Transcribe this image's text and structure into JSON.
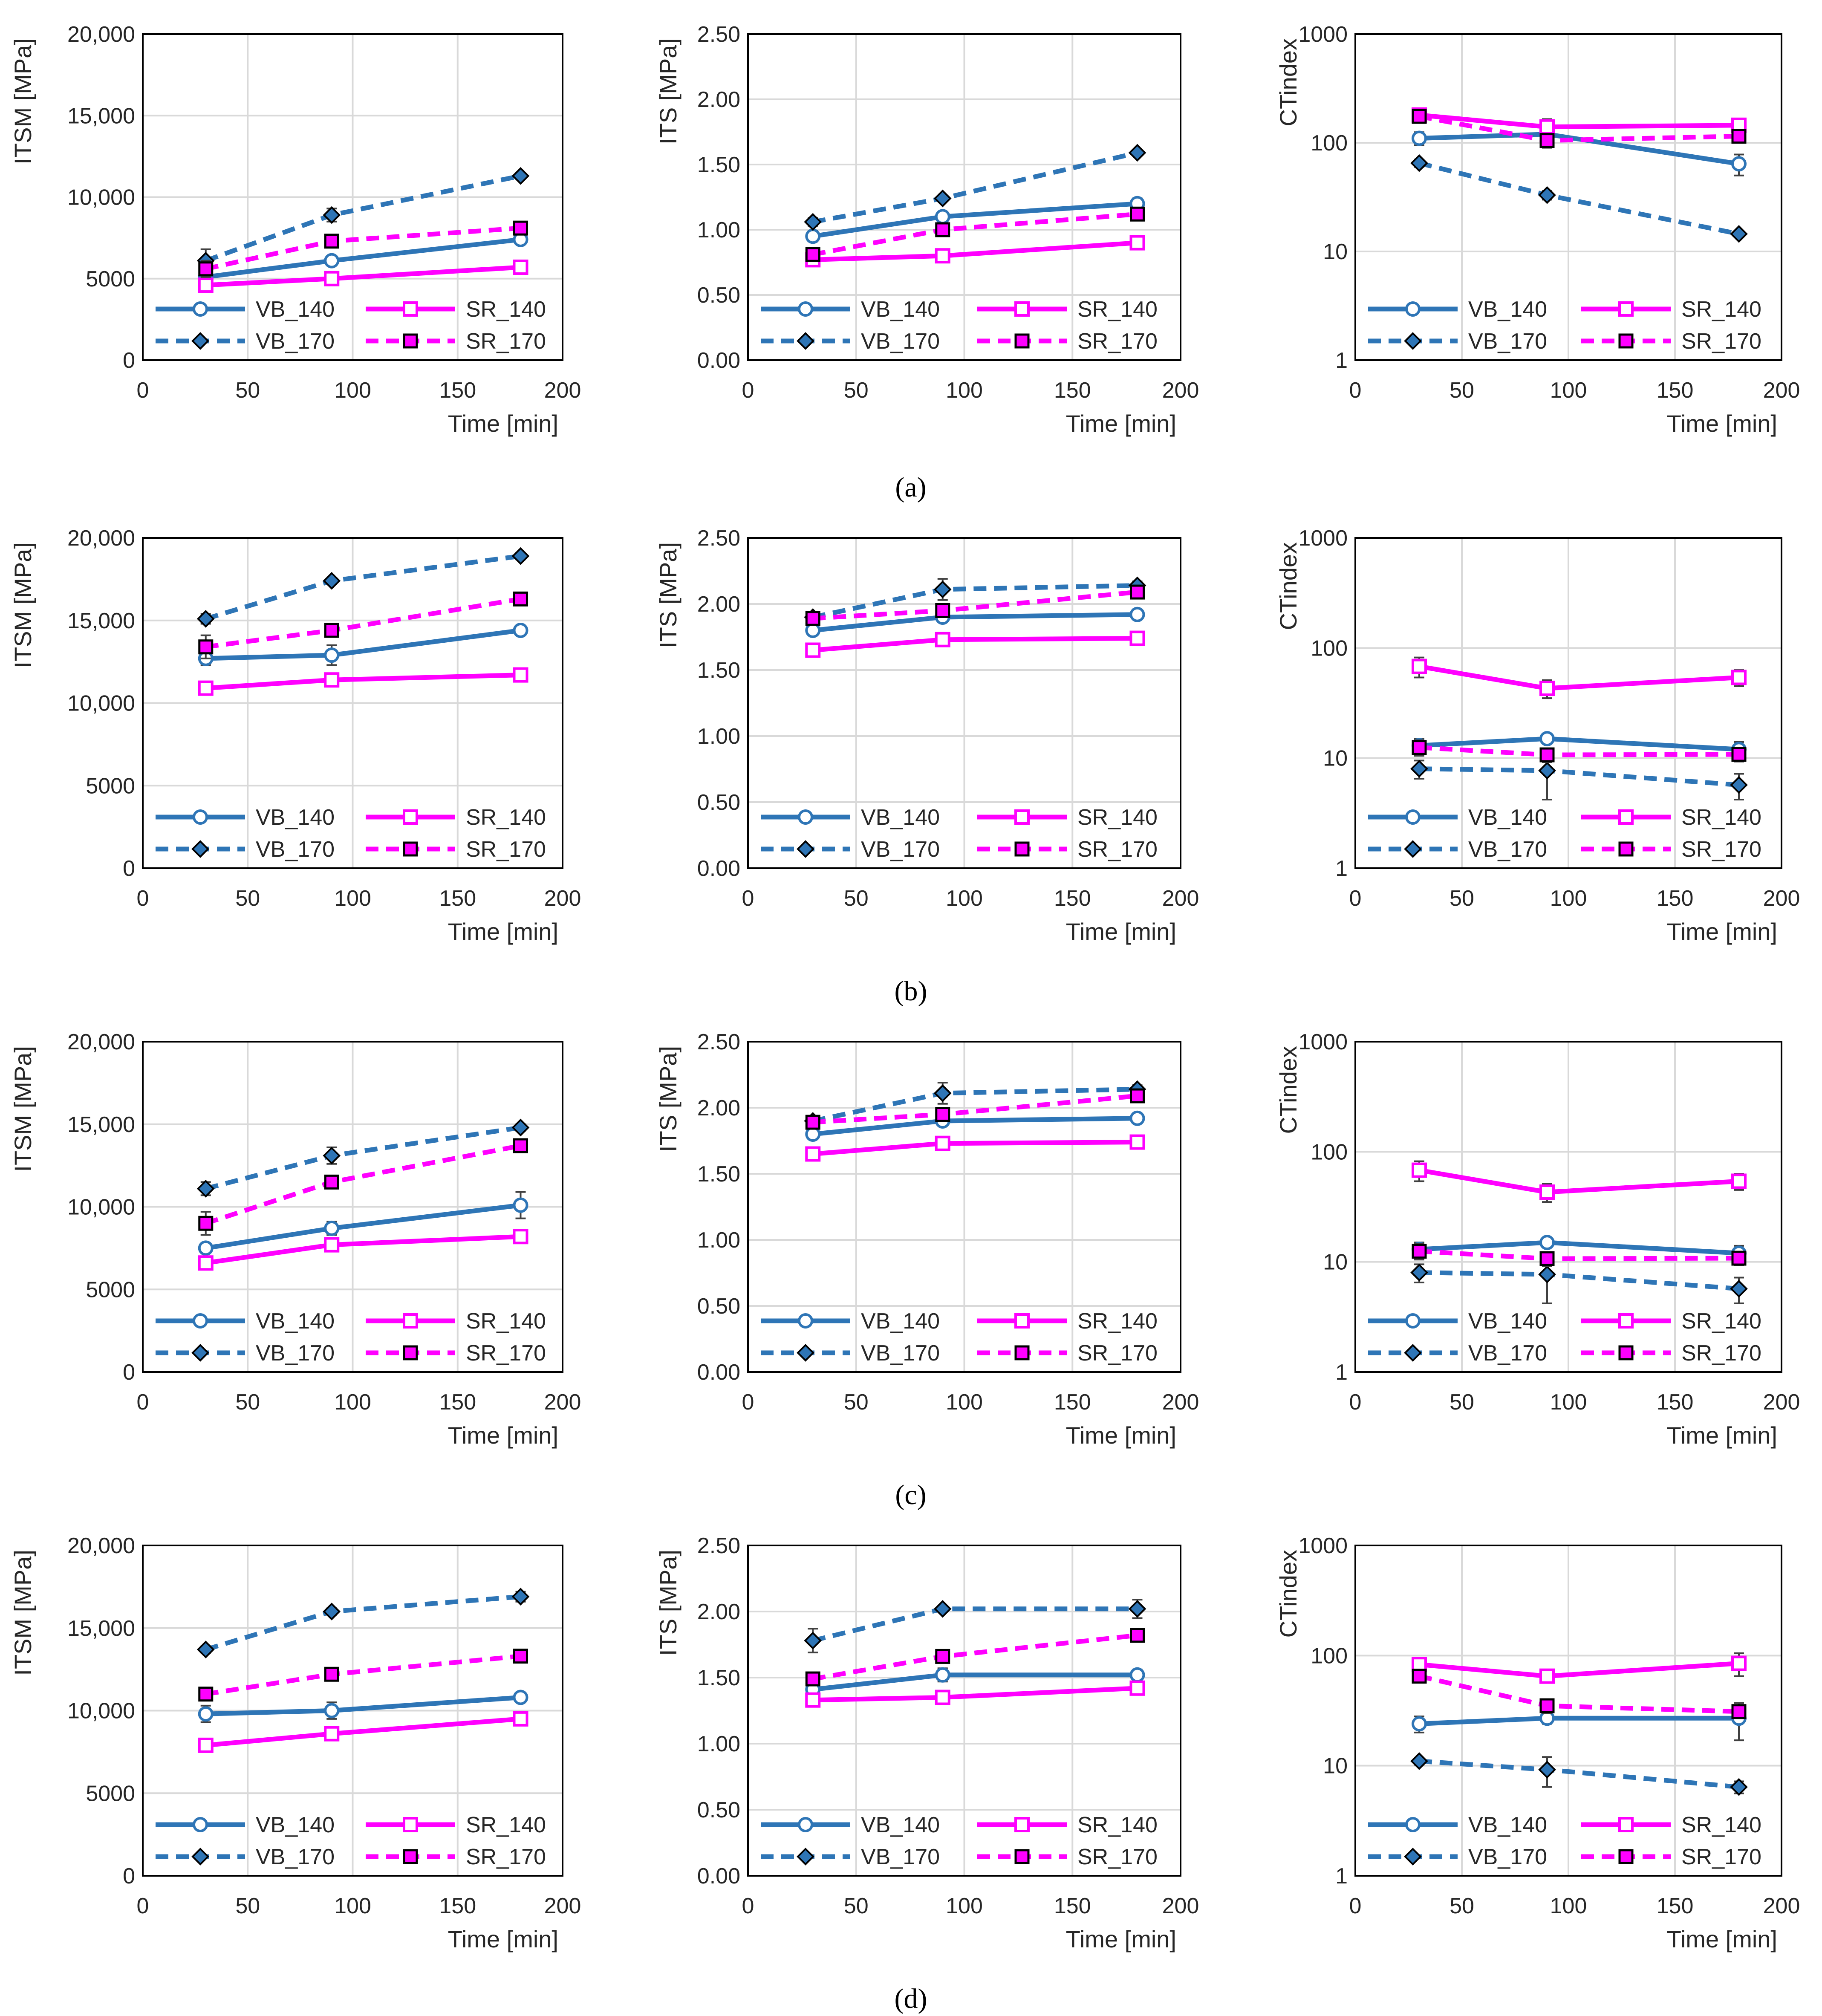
{
  "figure": {
    "captions": [
      "(a)",
      "(b)",
      "(c)",
      "(d)"
    ]
  },
  "styles": {
    "VB_140": {
      "color": "#2E75B6",
      "dashed": false,
      "marker": "circle-open"
    },
    "SR_140": {
      "color": "#FF00FF",
      "dashed": false,
      "marker": "square-open"
    },
    "VB_170": {
      "color": "#2E75B6",
      "dashed": true,
      "marker": "diamond-filled",
      "markerFill": "#2E75B6"
    },
    "SR_170": {
      "color": "#FF00FF",
      "dashed": true,
      "marker": "square-filled",
      "markerFill": "#FF00FF"
    },
    "grid_color": "#D9D9D9",
    "errorbar_color": "#404040"
  },
  "chart_data": [
    {
      "row": "a",
      "col": 0,
      "type": "line",
      "title": "",
      "xlabel": "Time [min]",
      "ylabel": "ITSM [MPa]",
      "xlim": [
        0,
        200
      ],
      "ylim": [
        0,
        20000
      ],
      "yscale": "linear",
      "xticks": [
        "0",
        "50",
        "100",
        "150",
        "200"
      ],
      "yticks": [
        "0",
        "5000",
        "10,000",
        "15,000",
        "20,000"
      ],
      "x": [
        30,
        90,
        180
      ],
      "series": [
        {
          "name": "VB_140",
          "values": [
            5100,
            6100,
            7400
          ],
          "errors": [
            200,
            250,
            250
          ]
        },
        {
          "name": "SR_140",
          "values": [
            4600,
            5000,
            5700
          ],
          "errors": [
            200,
            200,
            200
          ]
        },
        {
          "name": "VB_170",
          "values": [
            6100,
            8900,
            11300
          ],
          "errors": [
            700,
            400,
            200
          ]
        },
        {
          "name": "SR_170",
          "values": [
            5600,
            7300,
            8100
          ],
          "errors": [
            500,
            300,
            200
          ]
        }
      ]
    },
    {
      "row": "a",
      "col": 1,
      "type": "line",
      "title": "",
      "xlabel": "Time [min]",
      "ylabel": "ITS [MPa]",
      "xlim": [
        0,
        200
      ],
      "ylim": [
        0,
        2.5
      ],
      "yscale": "linear",
      "xticks": [
        "0",
        "50",
        "100",
        "150",
        "200"
      ],
      "yticks": [
        "0.00",
        "0.50",
        "1.00",
        "1.50",
        "2.00",
        "2.50"
      ],
      "x": [
        30,
        90,
        180
      ],
      "series": [
        {
          "name": "VB_140",
          "values": [
            0.95,
            1.1,
            1.2
          ],
          "errors": [
            0.04,
            0.03,
            0.04
          ]
        },
        {
          "name": "SR_140",
          "values": [
            0.77,
            0.8,
            0.9
          ],
          "errors": [
            0.03,
            0.03,
            0.03
          ]
        },
        {
          "name": "VB_170",
          "values": [
            1.06,
            1.24,
            1.59
          ],
          "errors": [
            0.03,
            0.02,
            0.02
          ]
        },
        {
          "name": "SR_170",
          "values": [
            0.81,
            1.0,
            1.12
          ],
          "errors": [
            0.04,
            0.04,
            0.04
          ]
        }
      ]
    },
    {
      "row": "a",
      "col": 2,
      "type": "line",
      "title": "",
      "xlabel": "Time [min]",
      "ylabel": "CTindex",
      "xlim": [
        0,
        200
      ],
      "ylim": [
        1,
        1000
      ],
      "yscale": "log",
      "xticks": [
        "0",
        "50",
        "100",
        "150",
        "200"
      ],
      "yticks": [
        "1",
        "10",
        "100",
        "1000"
      ],
      "x": [
        30,
        90,
        180
      ],
      "series": [
        {
          "name": "VB_140",
          "values": [
            110,
            120,
            64
          ],
          "errors": [
            15,
            15,
            14
          ]
        },
        {
          "name": "SR_140",
          "values": [
            180,
            140,
            145
          ],
          "errors": [
            20,
            25,
            20
          ]
        },
        {
          "name": "VB_170",
          "values": [
            65,
            33,
            14.5
          ],
          "errors": [
            5,
            3,
            1
          ]
        },
        {
          "name": "SR_170",
          "values": [
            175,
            105,
            115
          ],
          "errors": [
            20,
            15,
            15
          ]
        }
      ]
    },
    {
      "row": "b",
      "col": 0,
      "type": "line",
      "title": "",
      "xlabel": "Time [min]",
      "ylabel": "ITSM [MPa]",
      "xlim": [
        0,
        200
      ],
      "ylim": [
        0,
        20000
      ],
      "yscale": "linear",
      "xticks": [
        "0",
        "50",
        "100",
        "150",
        "200"
      ],
      "yticks": [
        "0",
        "5000",
        "10,000",
        "15,000",
        "20,000"
      ],
      "x": [
        30,
        90,
        180
      ],
      "series": [
        {
          "name": "VB_140",
          "values": [
            12700,
            12900,
            14400
          ],
          "errors": [
            400,
            600,
            200
          ]
        },
        {
          "name": "SR_140",
          "values": [
            10900,
            11400,
            11700
          ],
          "errors": [
            200,
            300,
            200
          ]
        },
        {
          "name": "VB_170",
          "values": [
            15100,
            17400,
            18900
          ],
          "errors": [
            300,
            200,
            200
          ]
        },
        {
          "name": "SR_170",
          "values": [
            13400,
            14400,
            16300
          ],
          "errors": [
            700,
            300,
            200
          ]
        }
      ]
    },
    {
      "row": "b",
      "col": 1,
      "type": "line",
      "title": "",
      "xlabel": "Time [min]",
      "ylabel": "ITS [MPa]",
      "xlim": [
        0,
        200
      ],
      "ylim": [
        0,
        2.5
      ],
      "yscale": "linear",
      "xticks": [
        "0",
        "50",
        "100",
        "150",
        "200"
      ],
      "yticks": [
        "0.00",
        "0.50",
        "1.00",
        "1.50",
        "2.00",
        "2.50"
      ],
      "x": [
        30,
        90,
        180
      ],
      "series": [
        {
          "name": "VB_140",
          "values": [
            1.8,
            1.9,
            1.92
          ],
          "errors": [
            0.03,
            0.03,
            0.03
          ]
        },
        {
          "name": "SR_140",
          "values": [
            1.65,
            1.73,
            1.74
          ],
          "errors": [
            0.03,
            0.04,
            0.03
          ]
        },
        {
          "name": "VB_170",
          "values": [
            1.9,
            2.11,
            2.14
          ],
          "errors": [
            0.03,
            0.08,
            0.03
          ]
        },
        {
          "name": "SR_170",
          "values": [
            1.89,
            1.95,
            2.09
          ],
          "errors": [
            0.03,
            0.05,
            0.03
          ]
        }
      ]
    },
    {
      "row": "b",
      "col": 2,
      "type": "line",
      "title": "",
      "xlabel": "Time [min]",
      "ylabel": "CTindex",
      "xlim": [
        0,
        200
      ],
      "ylim": [
        1,
        1000
      ],
      "yscale": "log",
      "xticks": [
        "0",
        "50",
        "100",
        "150",
        "200"
      ],
      "yticks": [
        "1",
        "10",
        "100",
        "1000"
      ],
      "x": [
        30,
        90,
        180
      ],
      "series": [
        {
          "name": "VB_140",
          "values": [
            13,
            15,
            12
          ],
          "errors": [
            2,
            1.5,
            2
          ]
        },
        {
          "name": "SR_140",
          "values": [
            68,
            43,
            54
          ],
          "errors": [
            14,
            8,
            9
          ]
        },
        {
          "name": "VB_170",
          "values": [
            8,
            7.7,
            5.7
          ],
          "errors": [
            1.5,
            3.5,
            1.5
          ]
        },
        {
          "name": "SR_170",
          "values": [
            12.5,
            10.7,
            10.8
          ],
          "errors": [
            2,
            1.5,
            1.5
          ]
        }
      ]
    },
    {
      "row": "c",
      "col": 0,
      "type": "line",
      "title": "",
      "xlabel": "Time [min]",
      "ylabel": "ITSM [MPa]",
      "xlim": [
        0,
        200
      ],
      "ylim": [
        0,
        20000
      ],
      "yscale": "linear",
      "xticks": [
        "0",
        "50",
        "100",
        "150",
        "200"
      ],
      "yticks": [
        "0",
        "5000",
        "10,000",
        "15,000",
        "20,000"
      ],
      "x": [
        30,
        90,
        180
      ],
      "series": [
        {
          "name": "VB_140",
          "values": [
            7500,
            8700,
            10100
          ],
          "errors": [
            200,
            400,
            800
          ]
        },
        {
          "name": "SR_140",
          "values": [
            6600,
            7700,
            8200
          ],
          "errors": [
            300,
            300,
            400
          ]
        },
        {
          "name": "VB_170",
          "values": [
            11100,
            13100,
            14800
          ],
          "errors": [
            400,
            500,
            200
          ]
        },
        {
          "name": "SR_170",
          "values": [
            9000,
            11500,
            13700
          ],
          "errors": [
            700,
            300,
            200
          ]
        }
      ]
    },
    {
      "row": "c",
      "col": 1,
      "type": "line",
      "title": "",
      "xlabel": "Time [min]",
      "ylabel": "ITS [MPa]",
      "xlim": [
        0,
        200
      ],
      "ylim": [
        0,
        2.5
      ],
      "yscale": "linear",
      "xticks": [
        "0",
        "50",
        "100",
        "150",
        "200"
      ],
      "yticks": [
        "0.00",
        "0.50",
        "1.00",
        "1.50",
        "2.00",
        "2.50"
      ],
      "x": [
        30,
        90,
        180
      ],
      "series": [
        {
          "name": "VB_140",
          "values": [
            1.8,
            1.9,
            1.92
          ],
          "errors": [
            0.03,
            0.03,
            0.03
          ]
        },
        {
          "name": "SR_140",
          "values": [
            1.65,
            1.73,
            1.74
          ],
          "errors": [
            0.03,
            0.04,
            0.03
          ]
        },
        {
          "name": "VB_170",
          "values": [
            1.9,
            2.11,
            2.14
          ],
          "errors": [
            0.03,
            0.08,
            0.03
          ]
        },
        {
          "name": "SR_170",
          "values": [
            1.89,
            1.95,
            2.09
          ],
          "errors": [
            0.03,
            0.05,
            0.03
          ]
        }
      ]
    },
    {
      "row": "c",
      "col": 2,
      "type": "line",
      "title": "",
      "xlabel": "Time [min]",
      "ylabel": "CTindex",
      "xlim": [
        0,
        200
      ],
      "ylim": [
        1,
        1000
      ],
      "yscale": "log",
      "xticks": [
        "0",
        "50",
        "100",
        "150",
        "200"
      ],
      "yticks": [
        "1",
        "10",
        "100",
        "1000"
      ],
      "x": [
        30,
        90,
        180
      ],
      "series": [
        {
          "name": "VB_140",
          "values": [
            13,
            15,
            12
          ],
          "errors": [
            2,
            1.5,
            2
          ]
        },
        {
          "name": "SR_140",
          "values": [
            68,
            43,
            54
          ],
          "errors": [
            14,
            8,
            9
          ]
        },
        {
          "name": "VB_170",
          "values": [
            8,
            7.7,
            5.7
          ],
          "errors": [
            1.5,
            3.5,
            1.5
          ]
        },
        {
          "name": "SR_170",
          "values": [
            12.5,
            10.7,
            10.8
          ],
          "errors": [
            2,
            1.5,
            1.5
          ]
        }
      ]
    },
    {
      "row": "d",
      "col": 0,
      "type": "line",
      "title": "",
      "xlabel": "Time [min]",
      "ylabel": "ITSM [MPa]",
      "xlim": [
        0,
        200
      ],
      "ylim": [
        0,
        20000
      ],
      "yscale": "linear",
      "xticks": [
        "0",
        "50",
        "100",
        "150",
        "200"
      ],
      "yticks": [
        "0",
        "5000",
        "10,000",
        "15,000",
        "20,000"
      ],
      "x": [
        30,
        90,
        180
      ],
      "series": [
        {
          "name": "VB_140",
          "values": [
            9800,
            10000,
            10800
          ],
          "errors": [
            500,
            500,
            200
          ]
        },
        {
          "name": "SR_140",
          "values": [
            7900,
            8600,
            9500
          ],
          "errors": [
            200,
            300,
            300
          ]
        },
        {
          "name": "VB_170",
          "values": [
            13700,
            16000,
            16900
          ],
          "errors": [
            200,
            200,
            300
          ]
        },
        {
          "name": "SR_170",
          "values": [
            11000,
            12200,
            13300
          ],
          "errors": [
            300,
            300,
            200
          ]
        }
      ]
    },
    {
      "row": "d",
      "col": 1,
      "type": "line",
      "title": "",
      "xlabel": "Time [min]",
      "ylabel": "ITS [MPa]",
      "xlim": [
        0,
        200
      ],
      "ylim": [
        0,
        2.5
      ],
      "yscale": "linear",
      "xticks": [
        "0",
        "50",
        "100",
        "150",
        "200"
      ],
      "yticks": [
        "0.00",
        "0.50",
        "1.00",
        "1.50",
        "2.00",
        "2.50"
      ],
      "x": [
        30,
        90,
        180
      ],
      "series": [
        {
          "name": "VB_140",
          "values": [
            1.41,
            1.52,
            1.52
          ],
          "errors": [
            0.03,
            0.05,
            0.04
          ]
        },
        {
          "name": "SR_140",
          "values": [
            1.33,
            1.35,
            1.42
          ],
          "errors": [
            0.03,
            0.02,
            0.04
          ]
        },
        {
          "name": "VB_170",
          "values": [
            1.78,
            2.02,
            2.02
          ],
          "errors": [
            0.09,
            0.02,
            0.07
          ]
        },
        {
          "name": "SR_170",
          "values": [
            1.49,
            1.66,
            1.82
          ],
          "errors": [
            0.03,
            0.04,
            0.03
          ]
        }
      ]
    },
    {
      "row": "d",
      "col": 2,
      "type": "line",
      "title": "",
      "xlabel": "Time [min]",
      "ylabel": "CTindex",
      "xlim": [
        0,
        200
      ],
      "ylim": [
        1,
        1000
      ],
      "yscale": "log",
      "xticks": [
        "0",
        "50",
        "100",
        "150",
        "200"
      ],
      "yticks": [
        "1",
        "10",
        "100",
        "1000"
      ],
      "x": [
        30,
        90,
        180
      ],
      "series": [
        {
          "name": "VB_140",
          "values": [
            24,
            27,
            27
          ],
          "errors": [
            4,
            3,
            10
          ]
        },
        {
          "name": "SR_140",
          "values": [
            83,
            65,
            85
          ],
          "errors": [
            10,
            8,
            20
          ]
        },
        {
          "name": "VB_170",
          "values": [
            11,
            9.2,
            6.4
          ],
          "errors": [
            0.8,
            2.8,
            0.8
          ]
        },
        {
          "name": "SR_170",
          "values": [
            65,
            35,
            31
          ],
          "errors": [
            8,
            5,
            4
          ]
        }
      ]
    }
  ]
}
